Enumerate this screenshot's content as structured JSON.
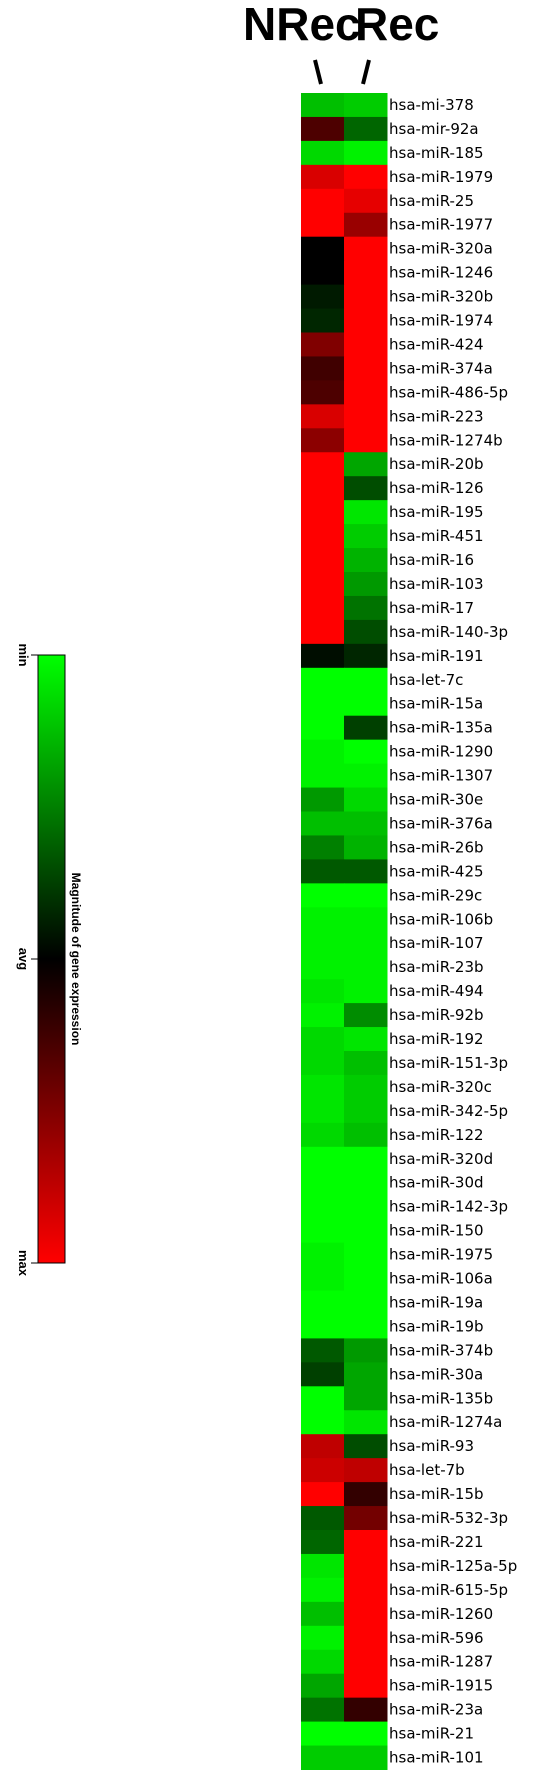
{
  "chart_data": {
    "type": "heatmap",
    "columns": [
      "NRec",
      "Rec"
    ],
    "rows": [
      {
        "label": "hsa-mi-378",
        "values": [
          -0.75,
          -0.8
        ]
      },
      {
        "label": "hsa-mir-92a",
        "values": [
          0.3,
          -0.4
        ]
      },
      {
        "label": "hsa-miR-185",
        "values": [
          -0.85,
          -0.95
        ]
      },
      {
        "label": "hsa-miR-1979",
        "values": [
          0.85,
          1.0
        ]
      },
      {
        "label": "hsa-miR-25",
        "values": [
          1.0,
          0.9
        ]
      },
      {
        "label": "hsa-miR-1977",
        "values": [
          1.0,
          0.6
        ]
      },
      {
        "label": "hsa-miR-320a",
        "values": [
          0.0,
          1.0
        ]
      },
      {
        "label": "hsa-miR-1246",
        "values": [
          0.0,
          1.0
        ]
      },
      {
        "label": "hsa-miR-320b",
        "values": [
          -0.1,
          1.0
        ]
      },
      {
        "label": "hsa-miR-1974",
        "values": [
          -0.15,
          1.0
        ]
      },
      {
        "label": "hsa-miR-424",
        "values": [
          0.5,
          1.0
        ]
      },
      {
        "label": "hsa-miR-374a",
        "values": [
          0.25,
          1.0
        ]
      },
      {
        "label": "hsa-miR-486-5p",
        "values": [
          0.3,
          1.0
        ]
      },
      {
        "label": "hsa-miR-223",
        "values": [
          0.85,
          1.0
        ]
      },
      {
        "label": "hsa-miR-1274b",
        "values": [
          0.55,
          1.0
        ]
      },
      {
        "label": "hsa-miR-20b",
        "values": [
          1.0,
          -0.65
        ]
      },
      {
        "label": "hsa-miR-126",
        "values": [
          1.0,
          -0.3
        ]
      },
      {
        "label": "hsa-miR-195",
        "values": [
          1.0,
          -0.9
        ]
      },
      {
        "label": "hsa-miR-451",
        "values": [
          1.0,
          -0.8
        ]
      },
      {
        "label": "hsa-miR-16",
        "values": [
          1.0,
          -0.7
        ]
      },
      {
        "label": "hsa-miR-103",
        "values": [
          1.0,
          -0.6
        ]
      },
      {
        "label": "hsa-miR-17",
        "values": [
          1.0,
          -0.45
        ]
      },
      {
        "label": "hsa-miR-140-3p",
        "values": [
          1.0,
          -0.3
        ]
      },
      {
        "label": "hsa-miR-191",
        "values": [
          -0.05,
          -0.15
        ]
      },
      {
        "label": "hsa-let-7c",
        "values": [
          -1.0,
          -1.0
        ]
      },
      {
        "label": "hsa-miR-15a",
        "values": [
          -1.0,
          -1.0
        ]
      },
      {
        "label": "hsa-miR-135a",
        "values": [
          -1.0,
          -0.25
        ]
      },
      {
        "label": "hsa-miR-1290",
        "values": [
          -0.95,
          -1.0
        ]
      },
      {
        "label": "hsa-miR-1307",
        "values": [
          -0.95,
          -0.95
        ]
      },
      {
        "label": "hsa-miR-30e",
        "values": [
          -0.6,
          -0.85
        ]
      },
      {
        "label": "hsa-miR-376a",
        "values": [
          -0.75,
          -0.75
        ]
      },
      {
        "label": "hsa-miR-26b",
        "values": [
          -0.5,
          -0.7
        ]
      },
      {
        "label": "hsa-miR-425",
        "values": [
          -0.35,
          -0.35
        ]
      },
      {
        "label": "hsa-miR-29c",
        "values": [
          -1.0,
          -1.0
        ]
      },
      {
        "label": "hsa-miR-106b",
        "values": [
          -0.95,
          -0.95
        ]
      },
      {
        "label": "hsa-miR-107",
        "values": [
          -0.95,
          -0.95
        ]
      },
      {
        "label": "hsa-miR-23b",
        "values": [
          -0.95,
          -0.95
        ]
      },
      {
        "label": "hsa-miR-494",
        "values": [
          -0.9,
          -0.95
        ]
      },
      {
        "label": "hsa-miR-92b",
        "values": [
          -0.95,
          -0.55
        ]
      },
      {
        "label": "hsa-miR-192",
        "values": [
          -0.85,
          -0.9
        ]
      },
      {
        "label": "hsa-miR-151-3p",
        "values": [
          -0.85,
          -0.75
        ]
      },
      {
        "label": "hsa-miR-320c",
        "values": [
          -0.9,
          -0.8
        ]
      },
      {
        "label": "hsa-miR-342-5p",
        "values": [
          -0.9,
          -0.8
        ]
      },
      {
        "label": "hsa-miR-122",
        "values": [
          -0.85,
          -0.75
        ]
      },
      {
        "label": "hsa-miR-320d",
        "values": [
          -1.0,
          -1.0
        ]
      },
      {
        "label": "hsa-miR-30d",
        "values": [
          -1.0,
          -1.0
        ]
      },
      {
        "label": "hsa-miR-142-3p",
        "values": [
          -1.0,
          -1.0
        ]
      },
      {
        "label": "hsa-miR-150",
        "values": [
          -1.0,
          -1.0
        ]
      },
      {
        "label": "hsa-miR-1975",
        "values": [
          -0.95,
          -1.0
        ]
      },
      {
        "label": "hsa-miR-106a",
        "values": [
          -0.95,
          -1.0
        ]
      },
      {
        "label": "hsa-miR-19a",
        "values": [
          -1.0,
          -1.0
        ]
      },
      {
        "label": "hsa-miR-19b",
        "values": [
          -1.0,
          -1.0
        ]
      },
      {
        "label": "hsa-miR-374b",
        "values": [
          -0.35,
          -0.6
        ]
      },
      {
        "label": "hsa-miR-30a",
        "values": [
          -0.25,
          -0.65
        ]
      },
      {
        "label": "hsa-miR-135b",
        "values": [
          -1.0,
          -0.65
        ]
      },
      {
        "label": "hsa-miR-1274a",
        "values": [
          -1.0,
          -0.9
        ]
      },
      {
        "label": "hsa-miR-93",
        "values": [
          0.75,
          -0.3
        ]
      },
      {
        "label": "hsa-let-7b",
        "values": [
          0.8,
          0.75
        ]
      },
      {
        "label": "hsa-miR-15b",
        "values": [
          1.0,
          0.2
        ]
      },
      {
        "label": "hsa-miR-532-3p",
        "values": [
          -0.35,
          0.45
        ]
      },
      {
        "label": "hsa-miR-221",
        "values": [
          -0.4,
          1.0
        ]
      },
      {
        "label": "hsa-miR-125a-5p",
        "values": [
          -0.9,
          1.0
        ]
      },
      {
        "label": "hsa-miR-615-5p",
        "values": [
          -0.95,
          1.0
        ]
      },
      {
        "label": "hsa-miR-1260",
        "values": [
          -0.75,
          1.0
        ]
      },
      {
        "label": "hsa-miR-596",
        "values": [
          -0.95,
          1.0
        ]
      },
      {
        "label": "hsa-miR-1287",
        "values": [
          -0.85,
          1.0
        ]
      },
      {
        "label": "hsa-miR-1915",
        "values": [
          -0.65,
          1.0
        ]
      },
      {
        "label": "hsa-miR-23a",
        "values": [
          -0.45,
          0.2
        ]
      },
      {
        "label": "hsa-miR-21",
        "values": [
          -1.0,
          -1.0
        ]
      },
      {
        "label": "hsa-miR-101",
        "values": [
          -0.8,
          -0.8
        ]
      }
    ],
    "color_scale": {
      "low_color": "#00ff00",
      "mid_color": "#000000",
      "high_color": "#ff0000",
      "tick_labels": [
        "min",
        "avg",
        "max"
      ],
      "title": "Magnitude of gene expression"
    }
  }
}
